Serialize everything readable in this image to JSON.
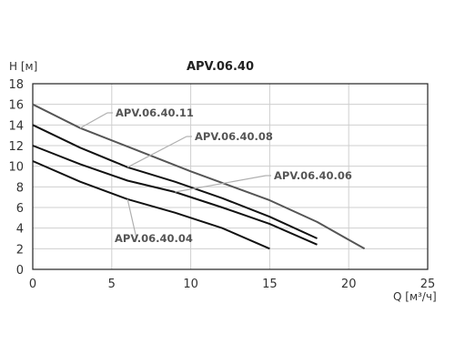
{
  "chart_data": {
    "type": "line",
    "title": "APV.06.40",
    "xlabel": "Q [м³/ч]",
    "ylabel": "H [м]",
    "xlim": [
      0,
      25
    ],
    "ylim": [
      0,
      18
    ],
    "xticks": [
      0,
      5,
      10,
      15,
      20,
      25
    ],
    "yticks": [
      0,
      2,
      4,
      6,
      8,
      10,
      12,
      14,
      16,
      18
    ],
    "grid": true,
    "series": [
      {
        "name": "APV.06.40.11",
        "color": "#555555",
        "points": [
          [
            0,
            16
          ],
          [
            3,
            13.7
          ],
          [
            6,
            11.9
          ],
          [
            10,
            9.5
          ],
          [
            15,
            6.7
          ],
          [
            18,
            4.6
          ],
          [
            21,
            2
          ]
        ]
      },
      {
        "name": "APV.06.40.08",
        "color": "#111111",
        "points": [
          [
            0,
            14
          ],
          [
            3,
            11.8
          ],
          [
            6,
            9.9
          ],
          [
            9,
            8.5
          ],
          [
            12,
            6.9
          ],
          [
            15,
            5.1
          ],
          [
            18,
            3
          ]
        ]
      },
      {
        "name": "APV.06.40.06",
        "color": "#111111",
        "points": [
          [
            0,
            12
          ],
          [
            3,
            10.2
          ],
          [
            6,
            8.6
          ],
          [
            9,
            7.5
          ],
          [
            12,
            6
          ],
          [
            15,
            4.4
          ],
          [
            18,
            2.4
          ]
        ]
      },
      {
        "name": "APV.06.40.04",
        "color": "#111111",
        "points": [
          [
            0,
            10.5
          ],
          [
            3,
            8.5
          ],
          [
            6,
            6.8
          ],
          [
            9,
            5.5
          ],
          [
            12,
            4
          ],
          [
            15,
            2
          ]
        ]
      }
    ],
    "annotations": [
      {
        "text": "APV.06.40.11",
        "series": 0
      },
      {
        "text": "APV.06.40.08",
        "series": 1
      },
      {
        "text": "APV.06.40.06",
        "series": 2
      },
      {
        "text": "APV.06.40.04",
        "series": 3
      }
    ]
  }
}
